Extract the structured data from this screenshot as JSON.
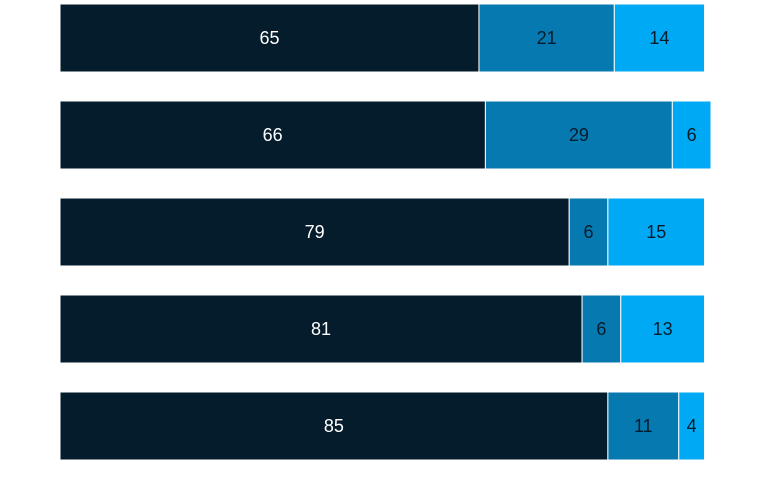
{
  "chart_data": {
    "type": "stacked-bar-horizontal",
    "series": [
      {
        "color": "#051c2c",
        "values": [
          65,
          66,
          79,
          81,
          85
        ]
      },
      {
        "color": "#0679b1",
        "values": [
          21,
          29,
          6,
          6,
          11
        ]
      },
      {
        "color": "#00a9f4",
        "values": [
          14,
          6,
          15,
          13,
          4
        ]
      }
    ]
  }
}
